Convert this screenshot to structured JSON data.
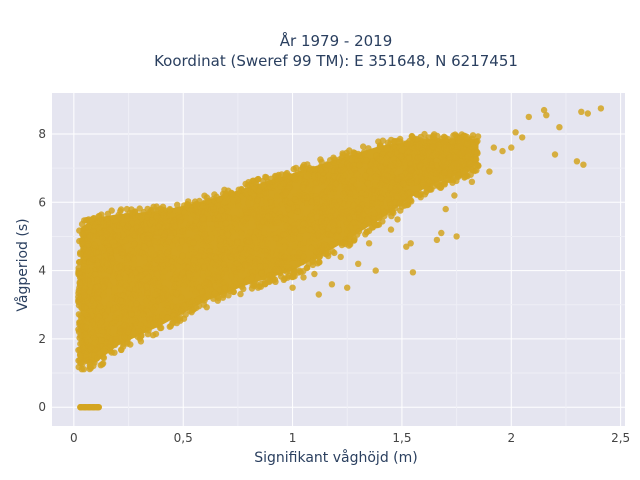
{
  "chart_data": {
    "type": "scatter",
    "title_line1": "År 1979 - 2019",
    "title_line2": "Koordinat (Sweref 99 TM): E 351648, N 6217451",
    "xlabel": "Signifikant våghöjd (m)",
    "ylabel": "Vågperiod (s)",
    "xlim": [
      -0.1,
      2.52
    ],
    "ylim": [
      -0.55,
      9.2
    ],
    "xticks": [
      {
        "value": 0,
        "label": "0"
      },
      {
        "value": 0.5,
        "label": "0,5"
      },
      {
        "value": 1,
        "label": "1"
      },
      {
        "value": 1.5,
        "label": "1,5"
      },
      {
        "value": 2,
        "label": "2"
      },
      {
        "value": 2.5,
        "label": "2,5"
      }
    ],
    "yticks": [
      {
        "value": 0,
        "label": "0"
      },
      {
        "value": 2,
        "label": "2"
      },
      {
        "value": 4,
        "label": "4"
      },
      {
        "value": 6,
        "label": "6"
      },
      {
        "value": 8,
        "label": "8"
      }
    ],
    "grid": true,
    "marker_color": "#d4a520",
    "background_color": "#e5e5f0",
    "band": {
      "x_range": [
        0.02,
        1.85
      ],
      "lower_edge": [
        [
          0.03,
          1.1
        ],
        [
          0.1,
          1.1
        ],
        [
          0.2,
          1.6
        ],
        [
          0.4,
          2.2
        ],
        [
          0.6,
          2.9
        ],
        [
          0.8,
          3.4
        ],
        [
          1.0,
          3.8
        ],
        [
          1.2,
          4.5
        ],
        [
          1.4,
          5.3
        ],
        [
          1.6,
          6.2
        ],
        [
          1.85,
          6.9
        ]
      ],
      "upper_edge": [
        [
          0.03,
          5.4
        ],
        [
          0.1,
          5.7
        ],
        [
          0.2,
          5.8
        ],
        [
          0.4,
          5.9
        ],
        [
          0.6,
          6.2
        ],
        [
          0.8,
          6.6
        ],
        [
          1.0,
          7.0
        ],
        [
          1.2,
          7.4
        ],
        [
          1.4,
          7.8
        ],
        [
          1.6,
          8.0
        ],
        [
          1.85,
          8.0
        ]
      ]
    },
    "zero_period_points": [
      {
        "x": 0.03,
        "y": 0
      },
      {
        "x": 0.05,
        "y": 0
      },
      {
        "x": 0.07,
        "y": 0
      },
      {
        "x": 0.09,
        "y": 0
      },
      {
        "x": 0.11,
        "y": 0
      }
    ],
    "outlier_points": [
      {
        "x": 2.41,
        "y": 8.75
      },
      {
        "x": 2.15,
        "y": 8.7
      },
      {
        "x": 2.16,
        "y": 8.55
      },
      {
        "x": 2.32,
        "y": 8.65
      },
      {
        "x": 2.35,
        "y": 8.6
      },
      {
        "x": 2.22,
        "y": 8.2
      },
      {
        "x": 2.08,
        "y": 8.5
      },
      {
        "x": 2.02,
        "y": 8.05
      },
      {
        "x": 2.05,
        "y": 7.9
      },
      {
        "x": 2.0,
        "y": 7.6
      },
      {
        "x": 2.2,
        "y": 7.4
      },
      {
        "x": 2.3,
        "y": 7.2
      },
      {
        "x": 2.33,
        "y": 7.1
      },
      {
        "x": 1.96,
        "y": 7.5
      },
      {
        "x": 1.92,
        "y": 7.6
      },
      {
        "x": 1.9,
        "y": 6.9
      },
      {
        "x": 1.82,
        "y": 6.6
      },
      {
        "x": 1.74,
        "y": 6.2
      },
      {
        "x": 1.7,
        "y": 5.8
      },
      {
        "x": 1.75,
        "y": 5.0
      },
      {
        "x": 1.68,
        "y": 5.1
      },
      {
        "x": 1.66,
        "y": 4.9
      },
      {
        "x": 1.54,
        "y": 4.8
      },
      {
        "x": 1.52,
        "y": 4.7
      },
      {
        "x": 1.55,
        "y": 3.95
      },
      {
        "x": 1.45,
        "y": 5.2
      },
      {
        "x": 1.42,
        "y": 5.6
      },
      {
        "x": 1.38,
        "y": 4.0
      },
      {
        "x": 1.3,
        "y": 4.2
      },
      {
        "x": 1.22,
        "y": 4.4
      },
      {
        "x": 1.18,
        "y": 3.6
      },
      {
        "x": 1.1,
        "y": 3.9
      },
      {
        "x": 1.05,
        "y": 3.8
      },
      {
        "x": 1.0,
        "y": 3.5
      },
      {
        "x": 1.28,
        "y": 5.9
      },
      {
        "x": 1.48,
        "y": 5.5
      },
      {
        "x": 1.35,
        "y": 4.8
      },
      {
        "x": 1.25,
        "y": 3.5
      },
      {
        "x": 1.12,
        "y": 3.3
      }
    ]
  }
}
